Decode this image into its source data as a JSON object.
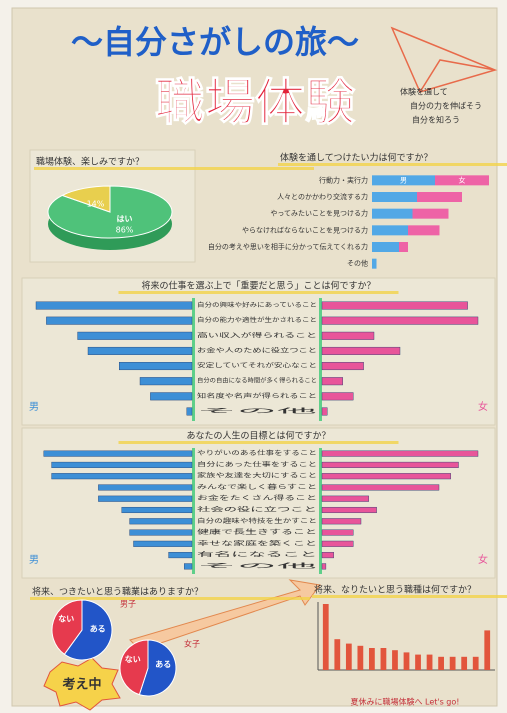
{
  "poster": {
    "title": "〜自分さがしの旅〜",
    "subtitle": "職場体験",
    "note": [
      "体験を通して",
      "自分の力を伸ばそう",
      "自分を知ろう"
    ],
    "badge": "考え中",
    "footer": "夏休みに職場体験へ Let's go!"
  },
  "chart_data": [
    {
      "type": "pie",
      "title": "職場体験、楽しみですか？",
      "categories": [
        "はい",
        null
      ],
      "values": [
        86,
        14
      ],
      "value_labels": [
        "86%",
        "14%"
      ],
      "colors": [
        "#4fc27a",
        "#e8cf4e"
      ]
    },
    {
      "type": "hbar_stacked",
      "title": "体験を通してつけたい力は何ですか？",
      "categories": [
        "行動力・実行力",
        "人々とのかかわり交流する力",
        "やってみたいことを見つける力",
        "やらなければならないことを見つける力",
        "自分の考えや思いを相手に分かって伝えてくれる力",
        "その他"
      ],
      "series": [
        {
          "name": "男",
          "color": "#52a8e6",
          "values": [
            14,
            10,
            9,
            8,
            6,
            1
          ]
        },
        {
          "name": "女",
          "color": "#ee63a6",
          "values": [
            12,
            10,
            8,
            7,
            2,
            0
          ]
        }
      ]
    },
    {
      "type": "butterfly",
      "title": "将来の仕事を選ぶ上で「重要だと思う」ことは何ですか？",
      "categories": [
        "自分の興味や好みにあっていること",
        "自分の能力や適性が生かされること",
        "高い収入が得られること",
        "お金や人のために役立つこと",
        "安定していてそれが安心なこと",
        "自分の自由になる時間が多く得られること",
        "知名度や名声が得られること",
        "その他"
      ],
      "series": [
        {
          "name": "男",
          "color": "#3d8fd6",
          "values": [
            30,
            28,
            22,
            20,
            14,
            10,
            8,
            1
          ]
        },
        {
          "name": "女",
          "color": "#e8559a",
          "values": [
            28,
            30,
            10,
            15,
            8,
            4,
            6,
            1
          ]
        }
      ]
    },
    {
      "type": "butterfly",
      "title": "あなたの人生の目標とは何ですか？",
      "categories": [
        "やりがいのある仕事をすること",
        "自分にあった仕事をすること",
        "家族や友達を大切にすること",
        "みんなで楽しく暮らすこと",
        "お金をたくさん得ること",
        "社会の役に立つこと",
        "自分の趣味や特技を生かすこと",
        "健康で長生きすること",
        "幸せな家庭を築くこと",
        "有名になること",
        "その他"
      ],
      "series": [
        {
          "name": "男",
          "color": "#3d8fd6",
          "values": [
            38,
            36,
            36,
            24,
            24,
            18,
            16,
            16,
            15,
            6,
            2
          ]
        },
        {
          "name": "女",
          "color": "#e8559a",
          "values": [
            40,
            35,
            33,
            30,
            12,
            14,
            10,
            8,
            8,
            3,
            1
          ]
        }
      ]
    },
    {
      "type": "pie",
      "title": "将来、つきたいと思う職業はありますか？",
      "label": "男子",
      "categories": [
        "ある",
        "ない"
      ],
      "values": [
        60,
        40
      ],
      "colors": [
        "#2255c8",
        "#e63a4e"
      ]
    },
    {
      "type": "pie",
      "label": "女子",
      "categories": [
        "ある",
        "ない"
      ],
      "values": [
        55,
        45
      ],
      "colors": [
        "#2255c8",
        "#e63a4e"
      ]
    },
    {
      "type": "bar",
      "title": "将来、なりたいと思う職種は何ですか？",
      "categories": [
        null,
        null,
        null,
        null,
        null,
        null,
        null,
        null,
        null,
        null,
        null,
        null,
        null,
        null,
        null
      ],
      "values": [
        30,
        14,
        12,
        11,
        10,
        10,
        9,
        8,
        7,
        7,
        6,
        6,
        6,
        6,
        18
      ],
      "color": "#e2553c"
    }
  ]
}
